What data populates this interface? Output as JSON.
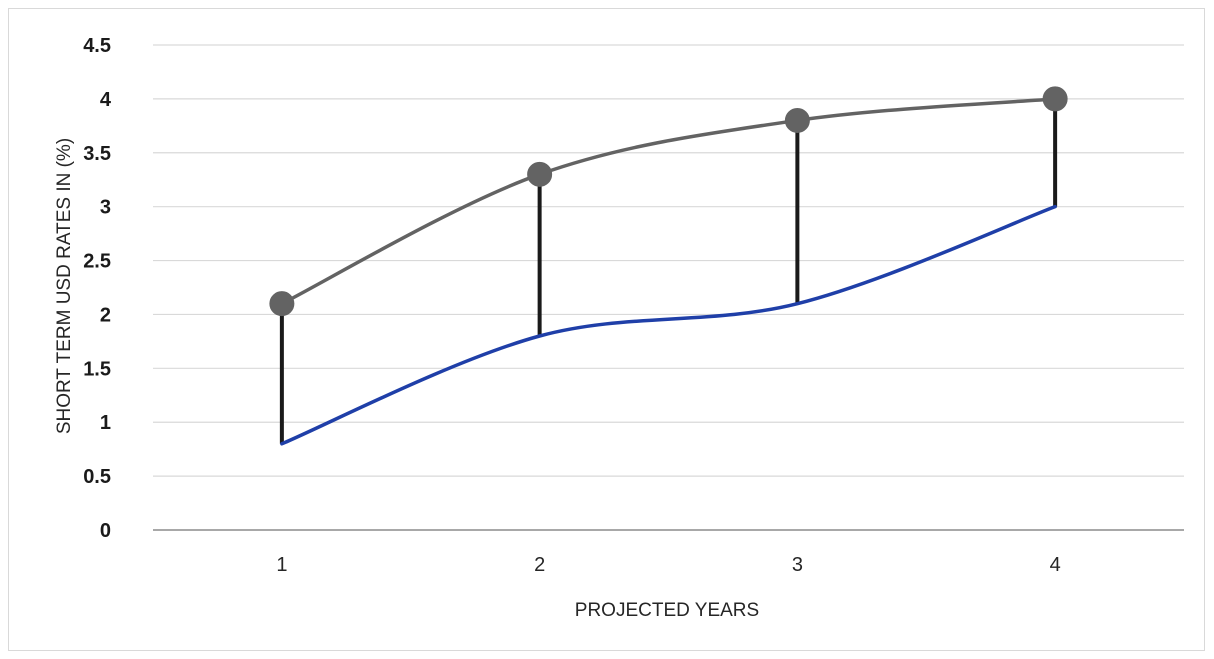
{
  "chart_data": {
    "type": "line",
    "title": "",
    "xlabel": "PROJECTED YEARS",
    "ylabel": "SHORT TERM USD RATES IN (%)",
    "categories": [
      "1",
      "2",
      "3",
      "4"
    ],
    "ylim": [
      0,
      4.5
    ],
    "yticks": [
      "0",
      "0.5",
      "1",
      "1.5",
      "2",
      "2.5",
      "3",
      "3.5",
      "4",
      "4.5"
    ],
    "grid": true,
    "legend": "none",
    "series": [
      {
        "values": [
          2.1,
          3.3,
          3.8,
          4.0
        ],
        "color": "#636363",
        "markers": true,
        "smooth": true
      },
      {
        "values": [
          0.8,
          1.8,
          2.1,
          3.0
        ],
        "color": "#1f3fa8",
        "markers": false,
        "smooth": true
      }
    ],
    "high_low_lines": true,
    "high_low_color": "#1a1a1a"
  }
}
